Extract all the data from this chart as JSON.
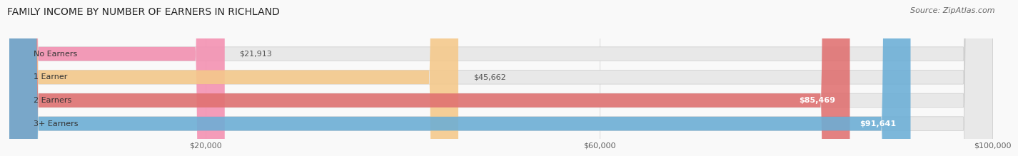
{
  "title": "FAMILY INCOME BY NUMBER OF EARNERS IN RICHLAND",
  "source": "Source: ZipAtlas.com",
  "categories": [
    "No Earners",
    "1 Earner",
    "2 Earners",
    "3+ Earners"
  ],
  "values": [
    21913,
    45662,
    85469,
    91641
  ],
  "bar_colors": [
    "#f48fb1",
    "#f5c98a",
    "#e07070",
    "#6baed6"
  ],
  "label_values": [
    "$21,913",
    "$45,662",
    "$85,469",
    "$91,641"
  ],
  "xlim": [
    0,
    100000
  ],
  "xticks": [
    20000,
    60000,
    100000
  ],
  "xtick_labels": [
    "$20,000",
    "$60,000",
    "$100,000"
  ],
  "title_fontsize": 10,
  "source_fontsize": 8,
  "bar_label_fontsize": 8,
  "cat_label_fontsize": 8,
  "background_color": "#f9f9f9",
  "bar_height": 0.6
}
